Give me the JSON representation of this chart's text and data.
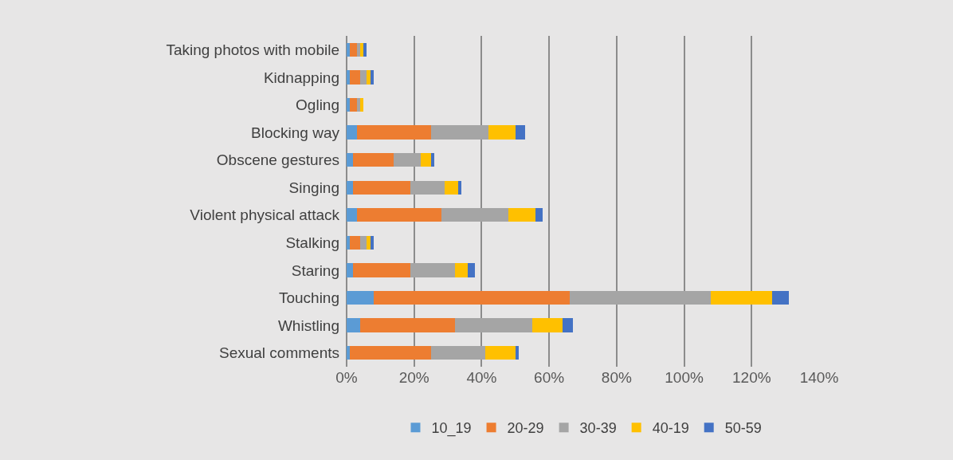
{
  "chart_data": {
    "type": "bar",
    "orientation": "horizontal",
    "stacked": true,
    "categories": [
      "Taking photos with mobile",
      "Kidnapping",
      "Ogling",
      "Blocking way",
      "Obscene gestures",
      "Singing",
      "Violent physical attack",
      "Stalking",
      "Staring",
      "Touching",
      "Whistling",
      "Sexual comments"
    ],
    "series": [
      {
        "name": "10_19",
        "color": "#5b9bd5",
        "values": [
          1,
          1,
          1,
          3,
          2,
          2,
          3,
          1,
          2,
          8,
          4,
          1
        ]
      },
      {
        "name": "20-29",
        "color": "#ed7d31",
        "values": [
          2,
          3,
          2,
          22,
          12,
          17,
          25,
          3,
          17,
          58,
          28,
          24
        ]
      },
      {
        "name": "30-39",
        "color": "#a5a5a5",
        "values": [
          1,
          2,
          1,
          17,
          8,
          10,
          20,
          2,
          13,
          42,
          23,
          16
        ]
      },
      {
        "name": "40-19",
        "color": "#ffc000",
        "values": [
          1,
          1,
          1,
          8,
          3,
          4,
          8,
          1,
          4,
          18,
          9,
          9
        ]
      },
      {
        "name": "50-59",
        "color": "#4472c4",
        "values": [
          1,
          1,
          0,
          3,
          1,
          1,
          2,
          1,
          2,
          5,
          3,
          1
        ]
      }
    ],
    "xlim": [
      0,
      140
    ],
    "xticks": [
      {
        "value": 0,
        "label": "0%"
      },
      {
        "value": 20,
        "label": "20%"
      },
      {
        "value": 40,
        "label": "40%"
      },
      {
        "value": 60,
        "label": "60%"
      },
      {
        "value": 80,
        "label": "80%"
      },
      {
        "value": 100,
        "label": "100%"
      },
      {
        "value": 120,
        "label": "120%"
      },
      {
        "value": 140,
        "label": "140%"
      }
    ],
    "grid": "x",
    "legend": "bottom"
  }
}
